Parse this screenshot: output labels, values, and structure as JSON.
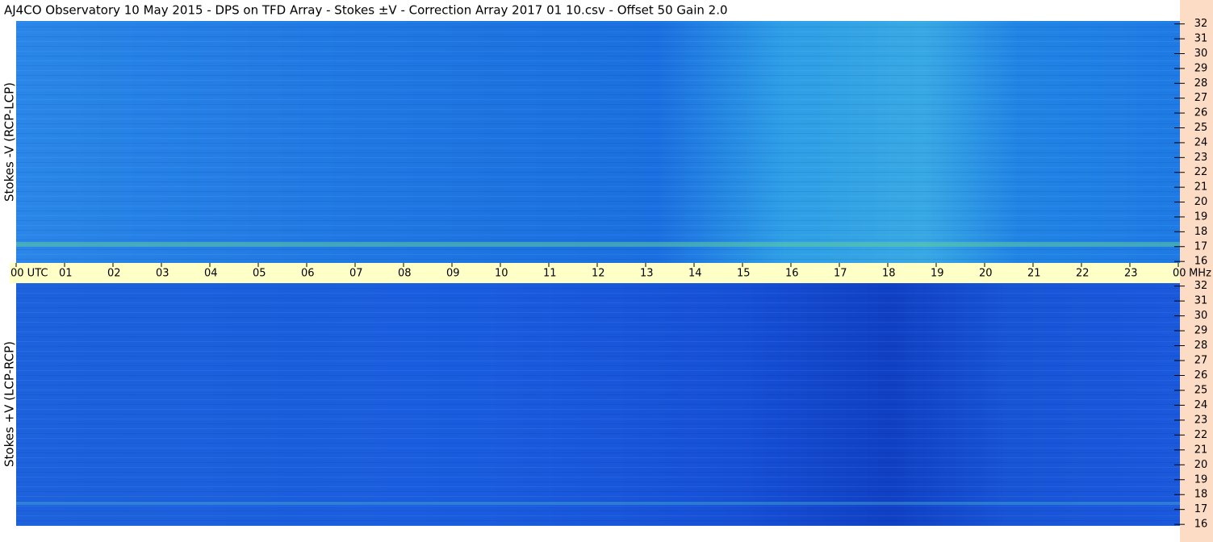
{
  "chart_data": [
    {
      "type": "heatmap",
      "title": "AJ4CO Observatory  10 May 2015  -  DPS on TFD Array  -  Stokes ±V  -  Correction Array 2017 01 10.csv  -  Offset 50  Gain 2.0",
      "ylabel": "Stokes -V (RCP-LCP)",
      "y_unit": "MHz",
      "xlim": [
        0,
        24
      ],
      "xticks": [
        {
          "value": 0,
          "label": "00  UTC"
        },
        {
          "value": 1,
          "label": "01"
        },
        {
          "value": 2,
          "label": "02"
        },
        {
          "value": 3,
          "label": "03"
        },
        {
          "value": 4,
          "label": "04"
        },
        {
          "value": 5,
          "label": "05"
        },
        {
          "value": 6,
          "label": "06"
        },
        {
          "value": 7,
          "label": "07"
        },
        {
          "value": 8,
          "label": "08"
        },
        {
          "value": 9,
          "label": "09"
        },
        {
          "value": 10,
          "label": "10"
        },
        {
          "value": 11,
          "label": "11"
        },
        {
          "value": 12,
          "label": "12"
        },
        {
          "value": 13,
          "label": "13"
        },
        {
          "value": 14,
          "label": "14"
        },
        {
          "value": 15,
          "label": "15"
        },
        {
          "value": 16,
          "label": "16"
        },
        {
          "value": 17,
          "label": "17"
        },
        {
          "value": 18,
          "label": "18"
        },
        {
          "value": 19,
          "label": "19"
        },
        {
          "value": 20,
          "label": "20"
        },
        {
          "value": 21,
          "label": "21"
        },
        {
          "value": 22,
          "label": "22"
        },
        {
          "value": 23,
          "label": "23"
        },
        {
          "value": 24,
          "label": "00"
        }
      ],
      "ylim": [
        15.9,
        32.2
      ],
      "yticks": [
        16,
        17,
        18,
        19,
        20,
        21,
        22,
        23,
        24,
        25,
        26,
        27,
        28,
        29,
        30,
        31,
        32
      ]
    },
    {
      "type": "heatmap",
      "ylabel": "Stokes +V (LCP-RCP)",
      "ylim": [
        15.9,
        32.2
      ],
      "yticks": [
        16,
        17,
        18,
        19,
        20,
        21,
        22,
        23,
        24,
        25,
        26,
        27,
        28,
        29,
        30,
        31,
        32
      ]
    }
  ]
}
